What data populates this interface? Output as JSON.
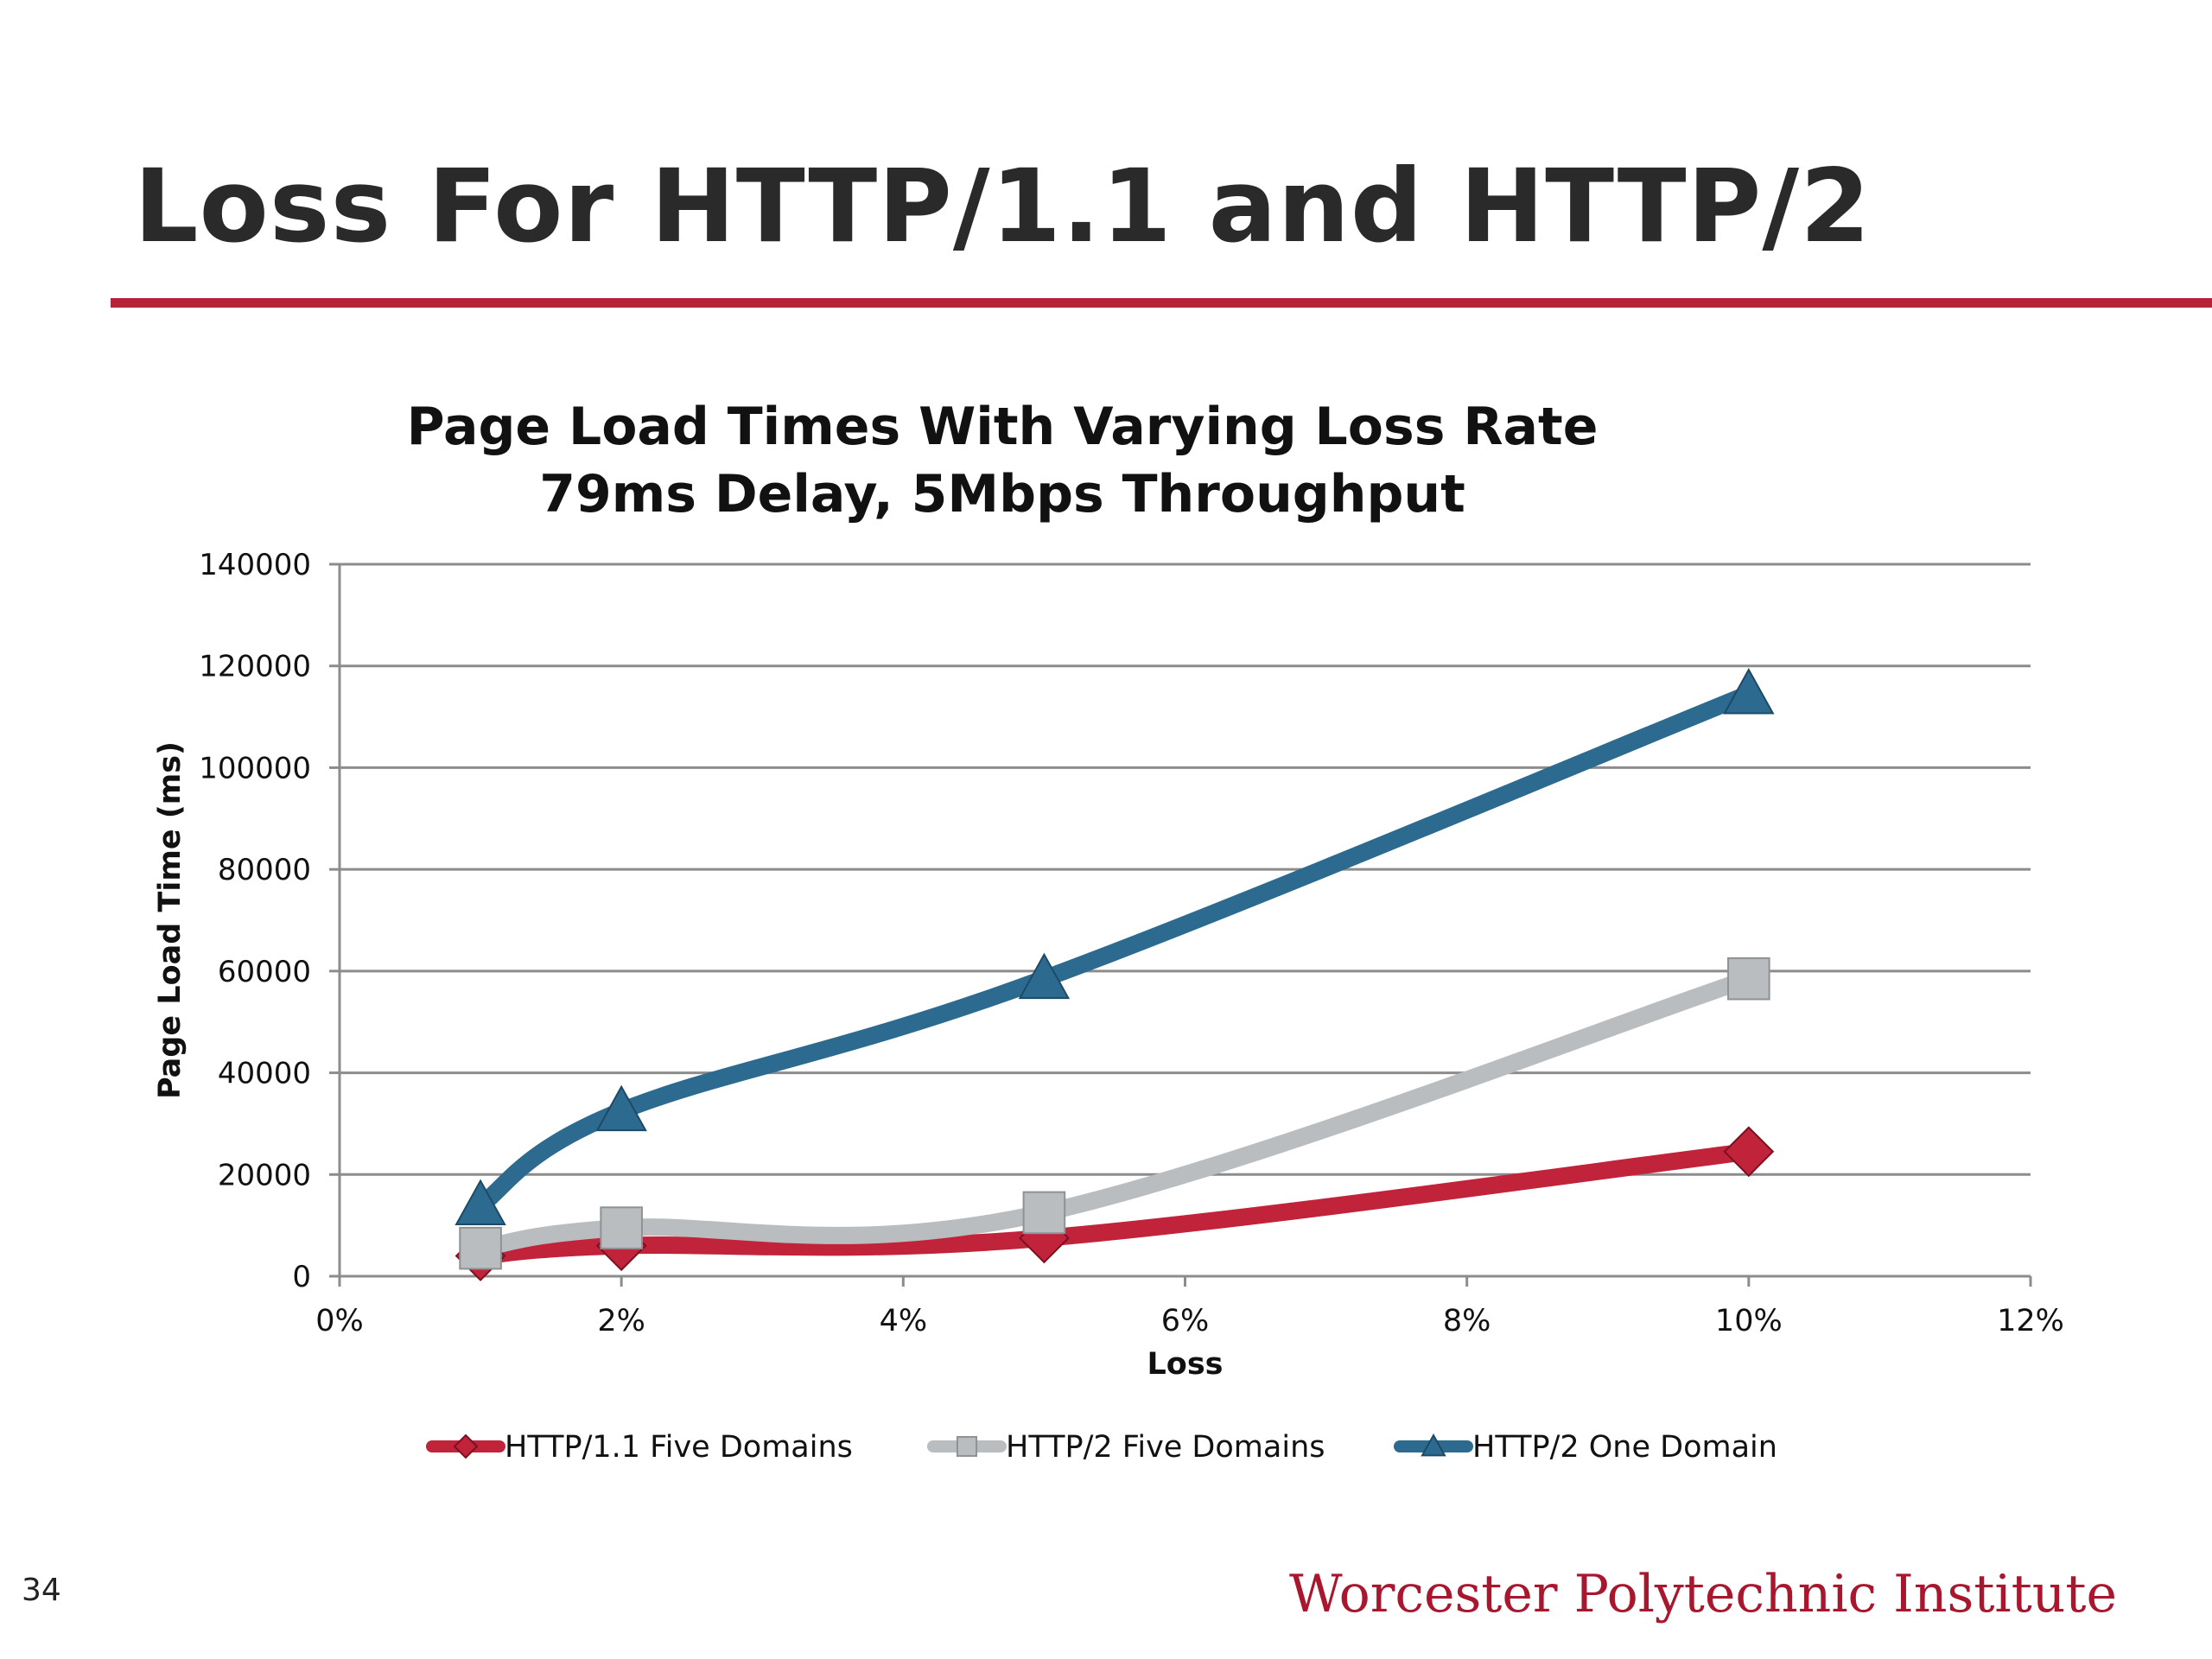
{
  "slide": {
    "title": "Loss For HTTP/1.1 and HTTP/2",
    "page_number": "34",
    "institution": "Worcester Polytechnic Institute",
    "accent_color": "#b5223a"
  },
  "chart_data": {
    "type": "line",
    "title_lines": [
      "Page Load Times With Varying Loss Rate",
      "79ms Delay, 5Mbps Throughput"
    ],
    "xlabel": "Loss",
    "ylabel": "Page Load Time (ms)",
    "xlim": [
      0,
      12
    ],
    "ylim": [
      0,
      140000
    ],
    "x_ticks": [
      0,
      2,
      4,
      6,
      8,
      10,
      12
    ],
    "x_tick_labels": [
      "0%",
      "2%",
      "4%",
      "6%",
      "8%",
      "10%",
      "12%"
    ],
    "y_ticks": [
      0,
      20000,
      40000,
      60000,
      80000,
      100000,
      120000,
      140000
    ],
    "y_tick_labels": [
      "0",
      "20000",
      "40000",
      "60000",
      "80000",
      "100000",
      "120000",
      "140000"
    ],
    "grid": true,
    "legend_position": "bottom",
    "x": [
      1,
      2,
      5,
      10
    ],
    "series": [
      {
        "name": "HTTP/1.1 Five Domains",
        "values": [
          4000,
          6000,
          7500,
          24500
        ],
        "color": "#c1233b",
        "marker": "diamond"
      },
      {
        "name": "HTTP/2 Five Domains",
        "values": [
          5500,
          9500,
          12500,
          58500
        ],
        "color": "#b9bdbf",
        "marker": "square"
      },
      {
        "name": "HTTP/2 One Domain",
        "values": [
          14000,
          32500,
          58500,
          114500
        ],
        "color": "#2d6a8f",
        "marker": "triangle"
      }
    ]
  }
}
